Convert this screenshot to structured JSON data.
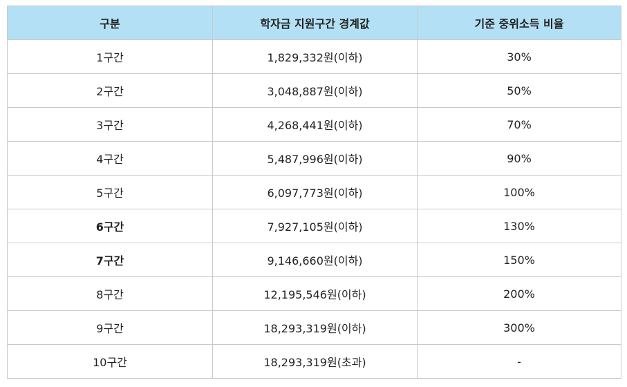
{
  "table": {
    "headers": [
      "구분",
      "학자금 지원구간 경계값",
      "기준 중위소득 비율"
    ],
    "header_color": "#b4e0f5",
    "border_color": "#c9c9c9",
    "rows": [
      {
        "group": "1구간",
        "boundary": "1,829,332원(이하)",
        "ratio": "30%"
      },
      {
        "group": "2구간",
        "boundary": "3,048,887원(이하)",
        "ratio": "50%"
      },
      {
        "group": "3구간",
        "boundary": "4,268,441원(이하)",
        "ratio": "70%"
      },
      {
        "group": "4구간",
        "boundary": "5,487,996원(이하)",
        "ratio": "90%"
      },
      {
        "group": "5구간",
        "boundary": "6,097,773원(이하)",
        "ratio": "100%"
      },
      {
        "group": "6구간",
        "boundary": "7,927,105원(이하)",
        "ratio": "130%"
      },
      {
        "group": "7구간",
        "boundary": "9,146,660원(이하)",
        "ratio": "150%"
      },
      {
        "group": "8구간",
        "boundary": "12,195,546원(이하)",
        "ratio": "200%"
      },
      {
        "group": "9구간",
        "boundary": "18,293,319원(이하)",
        "ratio": "300%"
      },
      {
        "group": "10구간",
        "boundary": "18,293,319원(초과)",
        "ratio": "-"
      }
    ]
  }
}
